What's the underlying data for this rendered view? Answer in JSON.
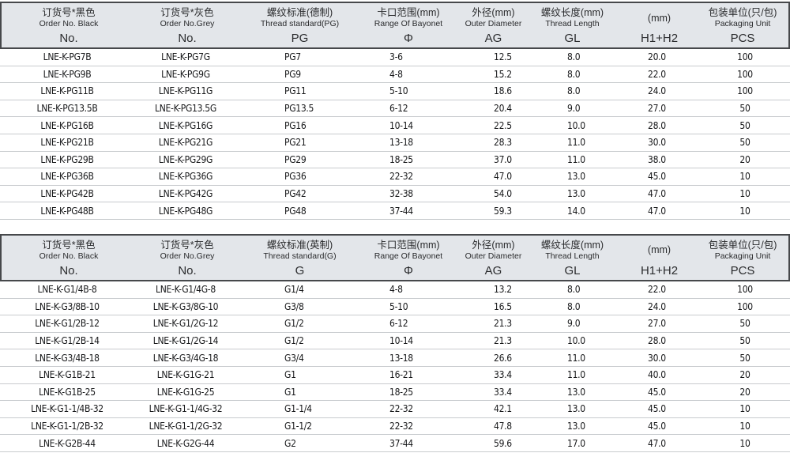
{
  "colors": {
    "header_bg": "#e3e6ea",
    "header_border": "#46484b",
    "row_divider": "#c8cbce",
    "text": "#17181a"
  },
  "tables": [
    {
      "name": "pg-thread-table",
      "columns": [
        {
          "zh": "订货号*黑色",
          "en": "Order No. Black",
          "code": "No."
        },
        {
          "zh": "订货号*灰色",
          "en": "Order No.Grey",
          "code": "No."
        },
        {
          "zh": "螺纹标准(德制)",
          "en": "Thread standard(PG)",
          "code": "PG"
        },
        {
          "zh": "卡口范围(mm)",
          "en": "Range Of Bayonet",
          "code": "Φ"
        },
        {
          "zh": "外径(mm)",
          "en": "Outer Diameter",
          "code": "AG"
        },
        {
          "zh": "螺纹长度(mm)",
          "en": "Thread Length",
          "code": "GL"
        },
        {
          "zh": "(mm)",
          "en": "",
          "code": "H1+H2"
        },
        {
          "zh": "包装单位(只/包)",
          "en": "Packaging Unit",
          "code": "PCS"
        }
      ],
      "rows": [
        [
          "LNE-K-PG7B",
          "LNE-K-PG7G",
          "PG7",
          "3-6",
          "12.5",
          "8.0",
          "20.0",
          "100"
        ],
        [
          "LNE-K-PG9B",
          "LNE-K-PG9G",
          "PG9",
          "4-8",
          "15.2",
          "8.0",
          "22.0",
          "100"
        ],
        [
          "LNE-K-PG11B",
          "LNE-K-PG11G",
          "PG11",
          "5-10",
          "18.6",
          "8.0",
          "24.0",
          "100"
        ],
        [
          "LNE-K-PG13.5B",
          "LNE-K-PG13.5G",
          "PG13.5",
          "6-12",
          "20.4",
          "9.0",
          "27.0",
          "50"
        ],
        [
          "LNE-K-PG16B",
          "LNE-K-PG16G",
          "PG16",
          "10-14",
          "22.5",
          "10.0",
          "28.0",
          "50"
        ],
        [
          "LNE-K-PG21B",
          "LNE-K-PG21G",
          "PG21",
          "13-18",
          "28.3",
          "11.0",
          "30.0",
          "50"
        ],
        [
          "LNE-K-PG29B",
          "LNE-K-PG29G",
          "PG29",
          "18-25",
          "37.0",
          "11.0",
          "38.0",
          "20"
        ],
        [
          "LNE-K-PG36B",
          "LNE-K-PG36G",
          "PG36",
          "22-32",
          "47.0",
          "13.0",
          "45.0",
          "10"
        ],
        [
          "LNE-K-PG42B",
          "LNE-K-PG42G",
          "PG42",
          "32-38",
          "54.0",
          "13.0",
          "47.0",
          "10"
        ],
        [
          "LNE-K-PG48B",
          "LNE-K-PG48G",
          "PG48",
          "37-44",
          "59.3",
          "14.0",
          "47.0",
          "10"
        ]
      ]
    },
    {
      "name": "g-thread-table",
      "columns": [
        {
          "zh": "订货号*黑色",
          "en": "Order No. Black",
          "code": "No."
        },
        {
          "zh": "订货号*灰色",
          "en": "Order No.Grey",
          "code": "No."
        },
        {
          "zh": "螺纹标准(英制)",
          "en": "Thread standard(G)",
          "code": "G"
        },
        {
          "zh": "卡口范围(mm)",
          "en": "Range Of Bayonet",
          "code": "Φ"
        },
        {
          "zh": "外径(mm)",
          "en": "Outer Diameter",
          "code": "AG"
        },
        {
          "zh": "螺纹长度(mm)",
          "en": "Thread Length",
          "code": "GL"
        },
        {
          "zh": "(mm)",
          "en": "",
          "code": "H1+H2"
        },
        {
          "zh": "包装单位(只/包)",
          "en": "Packaging Unit",
          "code": "PCS"
        }
      ],
      "rows": [
        [
          "LNE-K-G1/4B-8",
          "LNE-K-G1/4G-8",
          "G1/4",
          "4-8",
          "13.2",
          "8.0",
          "22.0",
          "100"
        ],
        [
          "LNE-K-G3/8B-10",
          "LNE-K-G3/8G-10",
          "G3/8",
          "5-10",
          "16.5",
          "8.0",
          "24.0",
          "100"
        ],
        [
          "LNE-K-G1/2B-12",
          "LNE-K-G1/2G-12",
          "G1/2",
          "6-12",
          "21.3",
          "9.0",
          "27.0",
          "50"
        ],
        [
          "LNE-K-G1/2B-14",
          "LNE-K-G1/2G-14",
          "G1/2",
          "10-14",
          "21.3",
          "10.0",
          "28.0",
          "50"
        ],
        [
          "LNE-K-G3/4B-18",
          "LNE-K-G3/4G-18",
          "G3/4",
          "13-18",
          "26.6",
          "11.0",
          "30.0",
          "50"
        ],
        [
          "LNE-K-G1B-21",
          "LNE-K-G1G-21",
          "G1",
          "16-21",
          "33.4",
          "11.0",
          "40.0",
          "20"
        ],
        [
          "LNE-K-G1B-25",
          "LNE-K-G1G-25",
          "G1",
          "18-25",
          "33.4",
          "13.0",
          "45.0",
          "20"
        ],
        [
          "LNE-K-G1-1/4B-32",
          "LNE-K-G1-1/4G-32",
          "G1-1/4",
          "22-32",
          "42.1",
          "13.0",
          "45.0",
          "10"
        ],
        [
          "LNE-K-G1-1/2B-32",
          "LNE-K-G1-1/2G-32",
          "G1-1/2",
          "22-32",
          "47.8",
          "13.0",
          "45.0",
          "10"
        ],
        [
          "LNE-K-G2B-44",
          "LNE-K-G2G-44",
          "G2",
          "37-44",
          "59.6",
          "17.0",
          "47.0",
          "10"
        ]
      ]
    }
  ]
}
